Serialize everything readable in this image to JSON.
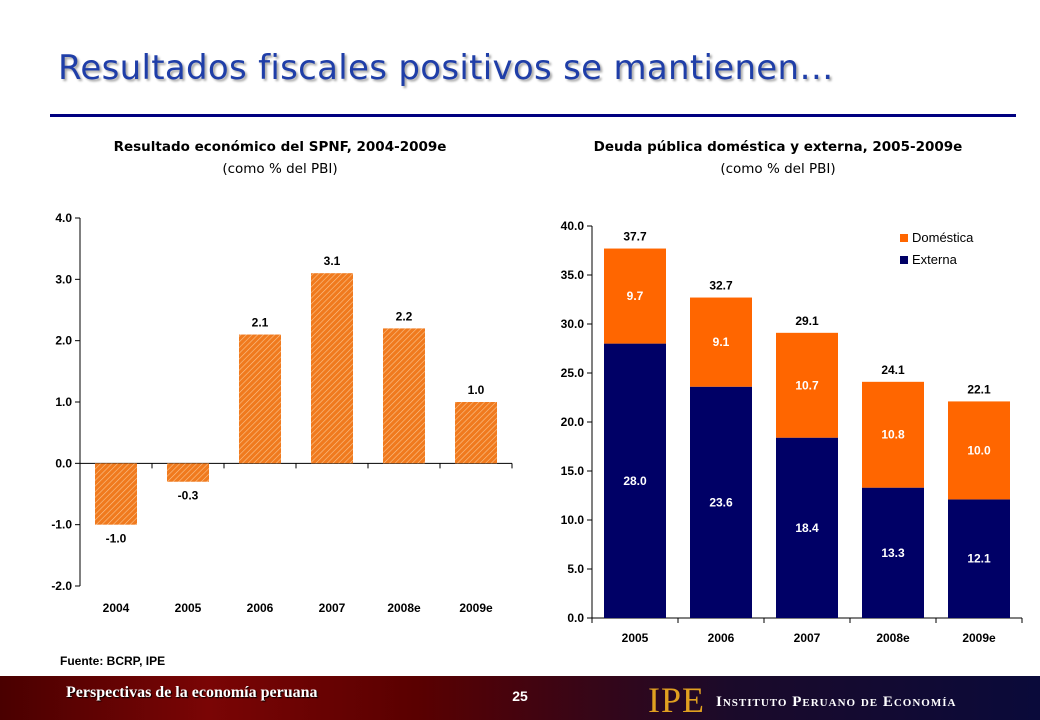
{
  "slide": {
    "title": "Resultados fiscales positivos se mantienen…",
    "source": "Fuente: BCRP, IPE",
    "footer_left": "Perspectivas de la economía peruana",
    "page_number": "25",
    "org_logo": "IPE",
    "org_name": "Instituto Peruano de Economía"
  },
  "chart_data": [
    {
      "type": "bar",
      "title": "Resultado económico del SPNF, 2004-2009e",
      "subtitle": "(como % del PBI)",
      "categories": [
        "2004",
        "2005",
        "2006",
        "2007",
        "2008e",
        "2009e"
      ],
      "values": [
        -1.0,
        -0.3,
        2.1,
        3.1,
        2.2,
        1.0
      ],
      "value_labels": [
        "-1.0",
        "-0.3",
        "2.1",
        "3.1",
        "2.2",
        "1.0"
      ],
      "ylim": [
        -2.0,
        4.0
      ],
      "yticks": [
        "-2.0",
        "-1.0",
        "0.0",
        "1.0",
        "2.0",
        "3.0",
        "4.0"
      ],
      "xlabel": "",
      "ylabel": "",
      "grid": false,
      "bar_color": "#f07a1e",
      "bar_hatch_color": "#fbc58f"
    },
    {
      "type": "bar",
      "stacked": true,
      "title": "Deuda pública doméstica y externa, 2005-2009e",
      "subtitle": "(como % del PBI)",
      "categories": [
        "2005",
        "2006",
        "2007",
        "2008e",
        "2009e"
      ],
      "series": [
        {
          "name": "Externa",
          "values": [
            28.0,
            23.6,
            18.4,
            13.3,
            12.1
          ],
          "labels": [
            "28.0",
            "23.6",
            "18.4",
            "13.3",
            "12.1"
          ],
          "color": "#000066",
          "label_color": "#ffffff"
        },
        {
          "name": "Doméstica",
          "values": [
            9.7,
            9.1,
            10.7,
            10.8,
            10.0
          ],
          "labels": [
            "9.7",
            "9.1",
            "10.7",
            "10.8",
            "10.0"
          ],
          "color": "#ff6600",
          "label_color": "#ffffff"
        }
      ],
      "totals": [
        "37.7",
        "32.7",
        "29.1",
        "24.1",
        "22.1"
      ],
      "legend_order": [
        "Doméstica",
        "Externa"
      ],
      "legend_position": "top-right",
      "ylim": [
        0,
        40
      ],
      "yticks": [
        "0.0",
        "5.0",
        "10.0",
        "15.0",
        "20.0",
        "25.0",
        "30.0",
        "35.0",
        "40.0"
      ],
      "xlabel": "",
      "ylabel": "",
      "grid": false
    }
  ],
  "colors": {
    "title": "#1f3ea8",
    "rule": "#000080",
    "logo": "#e0a020"
  }
}
